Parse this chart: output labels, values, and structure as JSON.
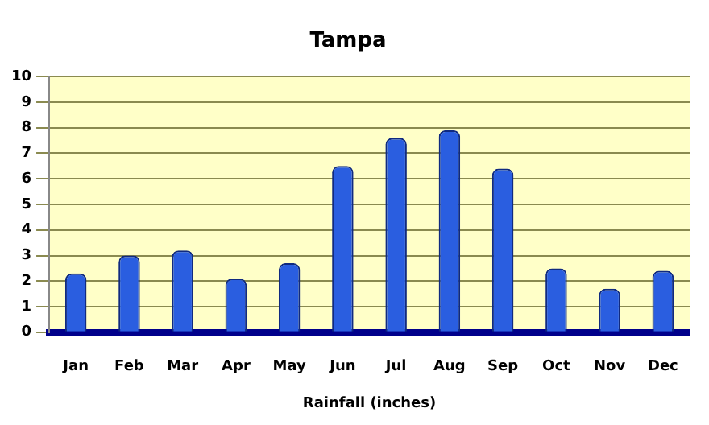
{
  "chart_data": {
    "type": "bar",
    "title": "Tampa",
    "xlabel": "Rainfall (inches)",
    "categories": [
      "Jan",
      "Feb",
      "Mar",
      "Apr",
      "May",
      "Jun",
      "Jul",
      "Aug",
      "Sep",
      "Oct",
      "Nov",
      "Dec"
    ],
    "values": [
      2.3,
      3.0,
      3.2,
      2.1,
      2.7,
      6.5,
      7.6,
      7.9,
      6.4,
      2.5,
      1.7,
      2.4
    ],
    "color": "#2a5ee0",
    "ylim": [
      0,
      10
    ],
    "yticks": [
      0,
      1,
      2,
      3,
      4,
      5,
      6,
      7,
      8,
      9,
      10
    ],
    "grid": "y",
    "legend": false
  }
}
